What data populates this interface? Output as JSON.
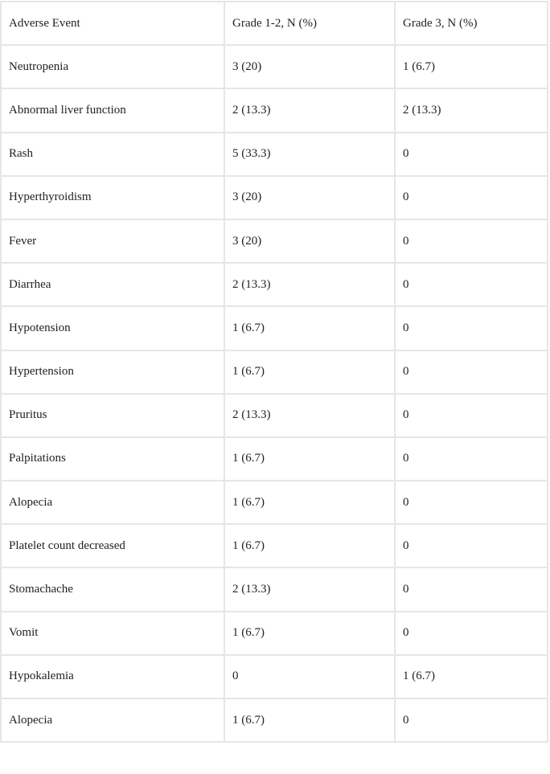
{
  "table": {
    "headers": [
      "Adverse Event",
      "Grade 1-2, N (%)",
      "Grade 3, N (%)"
    ],
    "rows": [
      [
        "Neutropenia",
        "3 (20)",
        "1 (6.7)"
      ],
      [
        "Abnormal liver function",
        "2 (13.3)",
        "2 (13.3)"
      ],
      [
        "Rash",
        "5 (33.3)",
        "0"
      ],
      [
        "Hyperthyroidism",
        "3 (20)",
        "0"
      ],
      [
        "Fever",
        "3 (20)",
        "0"
      ],
      [
        "Diarrhea",
        "2 (13.3)",
        "0"
      ],
      [
        "Hypotension",
        "1 (6.7)",
        "0"
      ],
      [
        "Hypertension",
        "1 (6.7)",
        "0"
      ],
      [
        "Pruritus",
        "2 (13.3)",
        "0"
      ],
      [
        "Palpitations",
        "1 (6.7)",
        "0"
      ],
      [
        "Alopecia",
        "1 (6.7)",
        "0"
      ],
      [
        "Platelet count decreased",
        "1 (6.7)",
        "0"
      ],
      [
        "Stomachache",
        "2 (13.3)",
        "0"
      ],
      [
        "Vomit",
        "1 (6.7)",
        "0"
      ],
      [
        "Hypokalemia",
        "0",
        "1 (6.7)"
      ],
      [
        "Alopecia",
        "1 (6.7)",
        "0"
      ]
    ]
  },
  "colors": {
    "border": "#e6e6e6",
    "text": "#222222"
  }
}
